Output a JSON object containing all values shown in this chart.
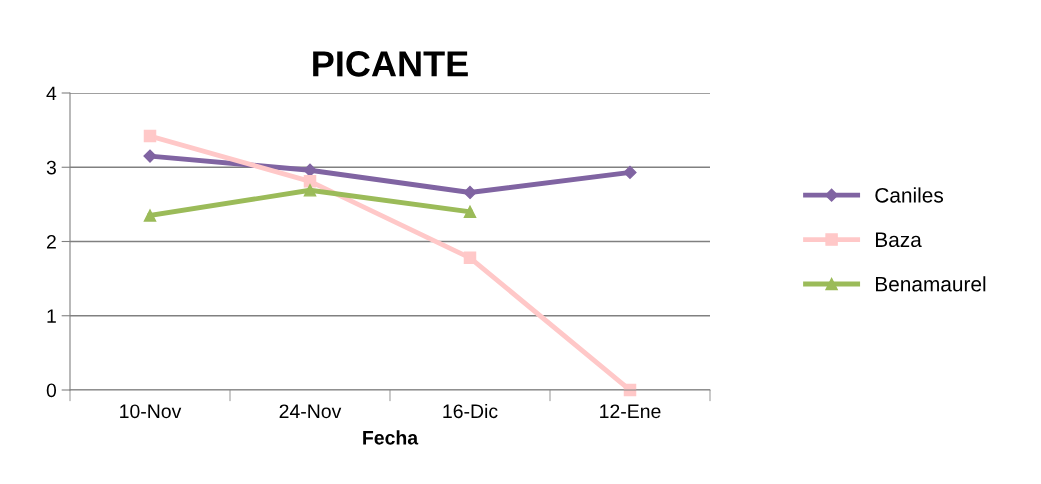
{
  "chart_data": {
    "type": "line",
    "title": "PICANTE",
    "xlabel": "Fecha",
    "categories": [
      "10-Nov",
      "24-Nov",
      "16-Dic",
      "12-Ene"
    ],
    "series": [
      {
        "name": "Caniles",
        "color": "#8064a2",
        "marker": "diamond",
        "values": [
          3.15,
          2.96,
          2.66,
          2.93
        ]
      },
      {
        "name": "Baza",
        "color": "#ffc8c8",
        "marker": "square",
        "values": [
          3.42,
          2.81,
          1.78,
          0
        ]
      },
      {
        "name": "Benamaurel",
        "color": "#9bbb59",
        "marker": "triangle",
        "values": [
          2.35,
          2.69,
          2.4,
          null
        ]
      }
    ],
    "ylim": [
      0,
      4
    ],
    "yticks": [
      0,
      1,
      2,
      3,
      4
    ],
    "grid": "y",
    "legend": "right",
    "line_style": "solid"
  }
}
